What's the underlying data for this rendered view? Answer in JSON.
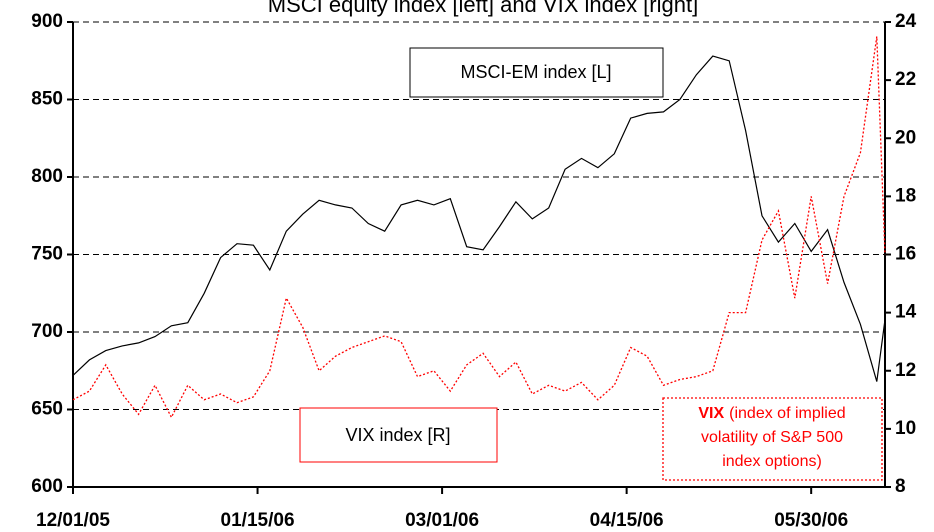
{
  "chart_data": {
    "type": "line",
    "title": "MSCI equity index [left] and VIX index [right]",
    "x": [
      "12/01/05",
      "12/05/05",
      "12/09/05",
      "12/13/05",
      "12/17/05",
      "12/21/05",
      "12/25/05",
      "12/29/05",
      "01/02/06",
      "01/06/06",
      "01/10/06",
      "01/14/06",
      "01/18/06",
      "01/22/06",
      "01/26/06",
      "01/30/06",
      "02/03/06",
      "02/07/06",
      "02/11/06",
      "02/15/06",
      "02/19/06",
      "02/23/06",
      "02/27/06",
      "03/03/06",
      "03/07/06",
      "03/11/06",
      "03/15/06",
      "03/19/06",
      "03/23/06",
      "03/27/06",
      "03/31/06",
      "04/04/06",
      "04/08/06",
      "04/12/06",
      "04/16/06",
      "04/20/06",
      "04/24/06",
      "04/28/06",
      "05/02/06",
      "05/06/06",
      "05/10/06",
      "05/14/06",
      "05/18/06",
      "05/22/06",
      "05/26/06",
      "05/30/06",
      "06/03/06",
      "06/07/06",
      "06/11/06",
      "06/15/06",
      "06/17/06"
    ],
    "series": [
      {
        "name": "MSCI-EM index [L]",
        "color": "#000000",
        "axis": "y",
        "values": [
          672,
          682,
          688,
          691,
          693,
          697,
          704,
          706,
          725,
          748,
          757,
          756,
          740,
          765,
          776,
          785,
          782,
          780,
          770,
          765,
          782,
          785,
          782,
          786,
          755,
          753,
          768,
          784,
          773,
          780,
          805,
          812,
          806,
          815,
          838,
          841,
          842,
          850,
          866,
          878,
          875,
          830,
          775,
          758,
          770,
          752,
          766,
          732,
          705,
          668,
          708
        ]
      },
      {
        "name": "VIX index [R]",
        "color": "#ff0000",
        "axis": "y2",
        "values": [
          11.0,
          11.3,
          12.2,
          11.2,
          10.5,
          11.5,
          10.4,
          11.5,
          11.0,
          11.2,
          10.9,
          11.1,
          12.0,
          14.5,
          13.5,
          12.0,
          12.5,
          12.8,
          13.0,
          13.2,
          13.0,
          11.8,
          12.0,
          11.3,
          12.2,
          12.6,
          11.8,
          12.3,
          11.2,
          11.5,
          11.3,
          11.6,
          11.0,
          11.5,
          12.8,
          12.5,
          11.5,
          11.7,
          11.8,
          12.0,
          14.0,
          14.0,
          16.5,
          17.5,
          14.5,
          18.0,
          15.0,
          18.0,
          19.5,
          23.5,
          16.0
        ]
      }
    ],
    "xlim": [
      "12/01/05",
      "06/17/06"
    ],
    "xticks": [
      "12/01/05",
      "01/15/06",
      "03/01/06",
      "04/15/06",
      "05/30/06"
    ],
    "ylim": [
      600,
      900
    ],
    "yticks": [
      600,
      650,
      700,
      750,
      800,
      850,
      900
    ],
    "y2lim": [
      8,
      24
    ],
    "y2ticks": [
      8,
      10,
      12,
      14,
      16,
      18,
      20,
      22,
      24
    ],
    "grid": true,
    "annotation": {
      "bold": "VIX",
      "lines": [
        "(index of implied",
        "volatility of S&P 500",
        "index options)"
      ]
    }
  }
}
